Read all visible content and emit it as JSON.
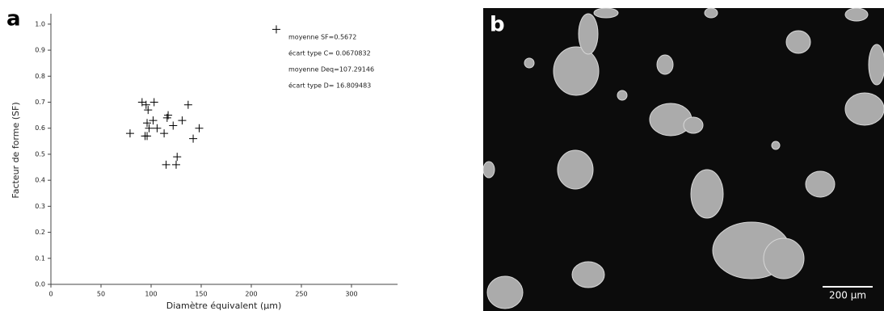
{
  "chart_data": {
    "type": "scatter",
    "x_label": "Diamètre équivalent (µm)",
    "y_label": "Facteur de forme (SF)",
    "annotations": [
      "moyenne SF=0.5672",
      "écart type C= 0.0670832",
      "moyenne Deq=107.29146",
      "écart type D= 16.809483"
    ],
    "series": [
      {
        "color": "#000000",
        "x": [
          225,
          91,
          95,
          103,
          97,
          117,
          116,
          137,
          96,
          102,
          131,
          122,
          79,
          98,
          106,
          113,
          148,
          142,
          94,
          96,
          126,
          125,
          115
        ],
        "values": [
          0.98,
          0.7,
          0.69,
          0.7,
          0.67,
          0.65,
          0.64,
          0.69,
          0.62,
          0.63,
          0.63,
          0.61,
          0.58,
          0.6,
          0.6,
          0.58,
          0.6,
          0.56,
          0.57,
          0.57,
          0.49,
          0.46,
          0.46
        ]
      }
    ],
    "xlim": [
      0,
      346
    ],
    "xticks": [
      0,
      50,
      100,
      150,
      200,
      250,
      300
    ],
    "ylim": [
      0,
      1.04
    ],
    "yticks": [
      {
        "value": 0,
        "label": "0.0"
      },
      0.1,
      0.2,
      0.3,
      0.4,
      0.5,
      0.6,
      0.7,
      0.8,
      0.9,
      {
        "value": 1,
        "label": "1.0"
      }
    ]
  },
  "panel_labels": [
    "a",
    "b"
  ],
  "micrograph": {
    "scale_bar": "200 µm"
  }
}
